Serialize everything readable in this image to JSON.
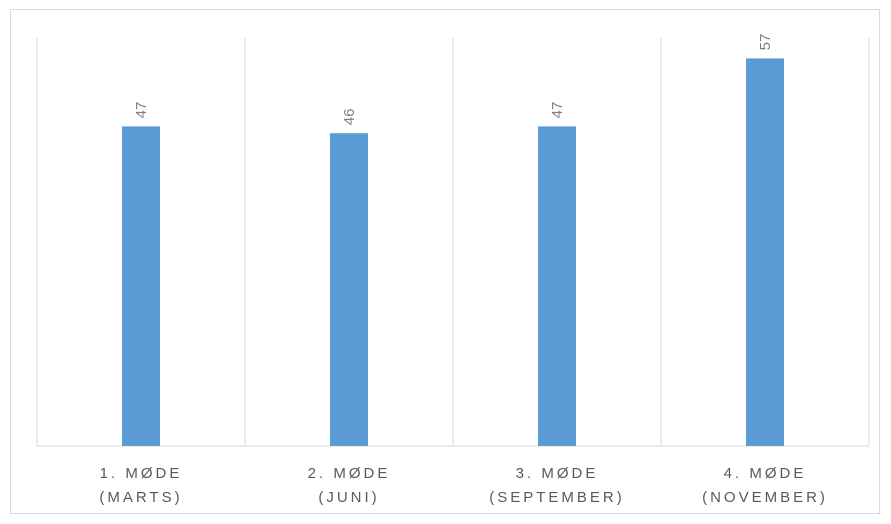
{
  "chart_data": {
    "type": "bar",
    "categories": [
      [
        "1. MØDE",
        "(MARTS)"
      ],
      [
        "2. MØDE",
        "(JUNI)"
      ],
      [
        "3. MØDE",
        "(SEPTEMBER)"
      ],
      [
        "4. MØDE",
        "(NOVEMBER)"
      ]
    ],
    "values": [
      47,
      46,
      47,
      57
    ],
    "data_labels": [
      "47",
      "46",
      "47",
      "57"
    ],
    "title": "",
    "xlabel": "",
    "ylabel": "",
    "ylim": [
      0,
      60
    ],
    "grid": "vertical-category-separators",
    "legend": "none",
    "colors": {
      "bar": "#5b9bd5",
      "grid": "#d9d9d9",
      "axis": "#d9d9d9",
      "tick_text": "#595959",
      "data_label_text": "#808080"
    }
  }
}
